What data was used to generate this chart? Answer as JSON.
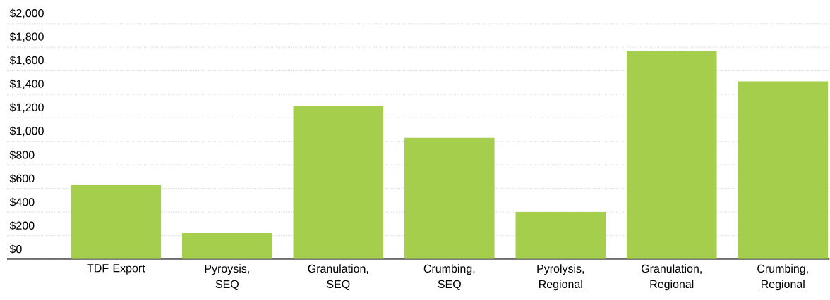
{
  "chart_data": {
    "type": "bar",
    "categories": [
      "TDF Export",
      "Pyroysis, SEQ",
      "Granulation, SEQ",
      "Crumbing, SEQ",
      "Pyrolysis, Regional",
      "Granulation, Regional",
      "Crumbing, Regional"
    ],
    "values": [
      630,
      220,
      1300,
      1030,
      400,
      1770,
      1510
    ],
    "color": "#a5ce4d",
    "ylim": [
      0,
      2000
    ],
    "yticks": [
      {
        "value": 0,
        "label": "$0"
      },
      {
        "value": 200,
        "label": "$200"
      },
      {
        "value": 400,
        "label": "$400"
      },
      {
        "value": 600,
        "label": "$600"
      },
      {
        "value": 800,
        "label": "$800"
      },
      {
        "value": 1000,
        "label": "$1,000"
      },
      {
        "value": 1200,
        "label": "$1,200"
      },
      {
        "value": 1400,
        "label": "$1,400"
      },
      {
        "value": 1600,
        "label": "$1,600"
      },
      {
        "value": 1800,
        "label": "$1,800"
      },
      {
        "value": 2000,
        "label": "$2,000"
      }
    ],
    "grid": "y"
  }
}
